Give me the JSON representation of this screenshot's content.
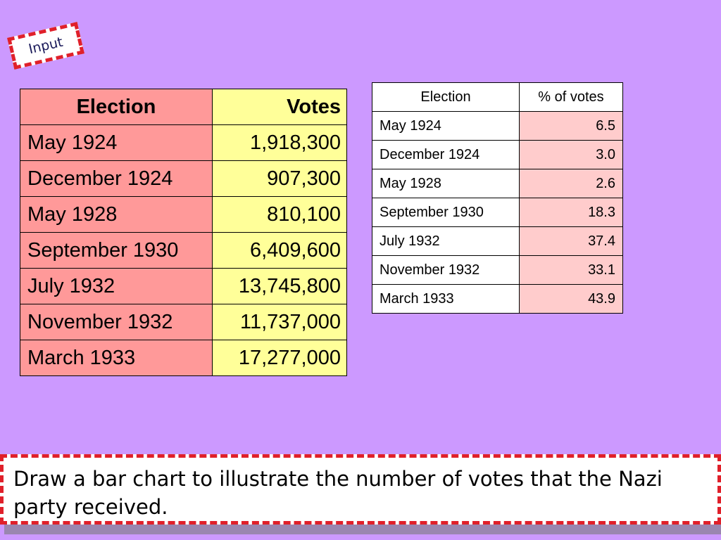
{
  "tag": {
    "label": "Input"
  },
  "votes_table": {
    "headers": [
      "Election",
      "Votes"
    ],
    "rows": [
      [
        "May 1924",
        "1,918,300"
      ],
      [
        "December 1924",
        "907,300"
      ],
      [
        "May 1928",
        "810,100"
      ],
      [
        "September 1930",
        "6,409,600"
      ],
      [
        "July 1932",
        "13,745,800"
      ],
      [
        "November 1932",
        "11,737,000"
      ],
      [
        "March 1933",
        "17,277,000"
      ]
    ]
  },
  "percent_table": {
    "headers": [
      "Election",
      "% of votes"
    ],
    "rows": [
      [
        "May 1924",
        "6.5"
      ],
      [
        "December 1924",
        "3.0"
      ],
      [
        "May 1928",
        "2.6"
      ],
      [
        "September 1930",
        "18.3"
      ],
      [
        "July 1932",
        "37.4"
      ],
      [
        "November 1932",
        "33.1"
      ],
      [
        "March 1933",
        "43.9"
      ]
    ]
  },
  "task": {
    "text": "Draw a bar chart to illustrate the number of votes that the Nazi party received."
  },
  "colors": {
    "background": "#cc99ff",
    "election_column": "#ff9999",
    "votes_column": "#ffff99",
    "percent_column": "#ffcccc",
    "dashed_border": "#e0202a"
  }
}
